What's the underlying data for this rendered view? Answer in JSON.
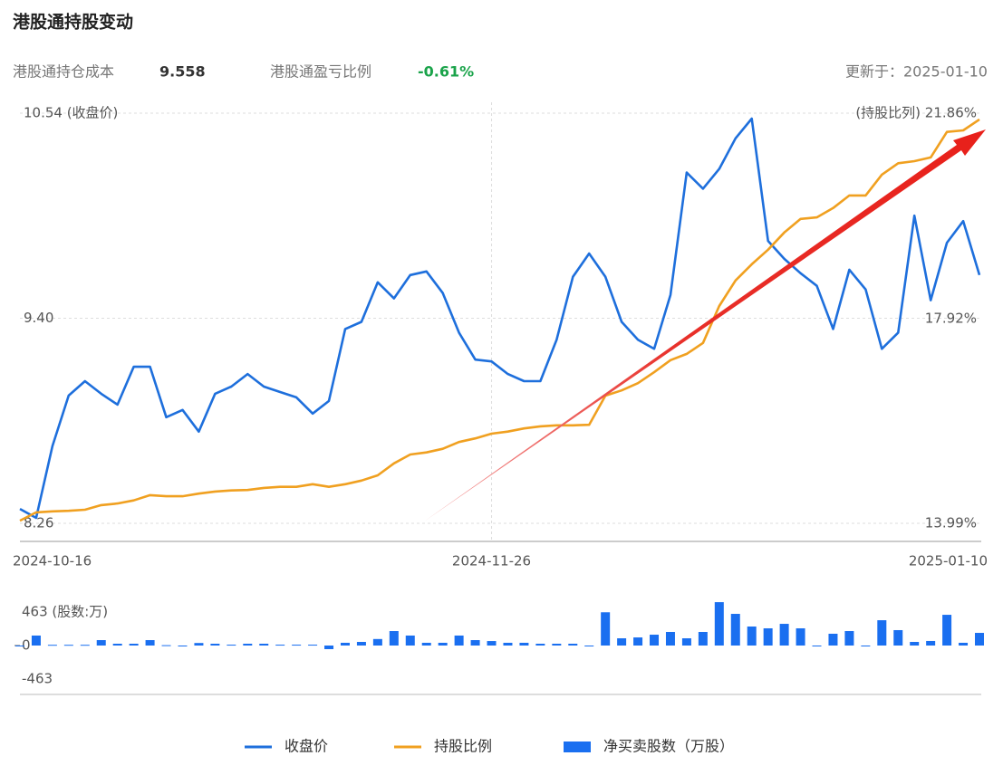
{
  "header": {
    "title": "港股通持股变动",
    "cost_label": "港股通持仓成本",
    "cost": "9.558",
    "pnl_label": "港股通盈亏比例",
    "pnl": "-0.61%",
    "updated": "更新于：2025-01-10"
  },
  "chart_data": [
    {
      "type": "line",
      "categories": [
        "2024-10-16",
        null,
        null,
        null,
        null,
        null,
        null,
        null,
        null,
        null,
        null,
        null,
        null,
        null,
        null,
        null,
        null,
        null,
        null,
        null,
        null,
        null,
        null,
        null,
        null,
        null,
        null,
        null,
        null,
        "2024-11-26",
        null,
        null,
        null,
        null,
        null,
        null,
        null,
        null,
        null,
        null,
        null,
        null,
        null,
        null,
        null,
        null,
        null,
        null,
        null,
        null,
        null,
        null,
        null,
        null,
        null,
        null,
        null,
        null,
        null,
        "2025-01-10"
      ],
      "series": [
        {
          "name": "收盘价",
          "color": "#1e6fdc",
          "values": [
            8.34,
            8.29,
            8.69,
            8.97,
            9.05,
            8.98,
            8.92,
            9.13,
            9.13,
            8.85,
            8.89,
            8.77,
            8.98,
            9.02,
            9.09,
            9.02,
            8.99,
            8.96,
            8.87,
            8.94,
            9.34,
            9.38,
            9.6,
            9.51,
            9.64,
            9.66,
            9.54,
            9.32,
            9.17,
            9.16,
            9.09,
            9.05,
            9.05,
            9.28,
            9.63,
            9.76,
            9.63,
            9.38,
            9.28,
            9.23,
            9.53,
            10.21,
            10.12,
            10.23,
            10.4,
            10.51,
            9.83,
            9.73,
            9.65,
            9.58,
            9.34,
            9.67,
            9.56,
            9.23,
            9.32,
            9.97,
            9.5,
            9.82,
            9.94,
            9.64
          ]
        },
        {
          "name": "持股比例",
          "color": "#f0a020",
          "axis": "y2",
          "values": [
            14.04,
            14.2,
            14.22,
            14.23,
            14.25,
            14.34,
            14.37,
            14.43,
            14.53,
            14.51,
            14.51,
            14.56,
            14.6,
            14.62,
            14.63,
            14.67,
            14.69,
            14.69,
            14.74,
            14.69,
            14.74,
            14.81,
            14.91,
            15.14,
            15.31,
            15.35,
            15.42,
            15.55,
            15.62,
            15.71,
            15.75,
            15.81,
            15.85,
            15.87,
            15.87,
            15.88,
            16.44,
            16.54,
            16.68,
            16.89,
            17.12,
            17.24,
            17.45,
            18.16,
            18.65,
            18.96,
            19.24,
            19.57,
            19.83,
            19.86,
            20.04,
            20.28,
            20.28,
            20.68,
            20.9,
            20.94,
            21.01,
            21.5,
            21.53,
            21.74
          ]
        }
      ],
      "ylim": [
        8.26,
        10.54
      ],
      "yticks": [
        8.26,
        {
          "value": 9.4,
          "label": "9.40"
        },
        {
          "value": 10.54,
          "label": "10.54 (收盘价)"
        }
      ],
      "y2lim": [
        13.99,
        21.86
      ],
      "y2ticks": [
        {
          "value": 13.99,
          "label": "13.99%"
        },
        {
          "value": 17.92,
          "label": "17.92%"
        },
        {
          "value": 21.86,
          "label": "(持股比列) 21.86%"
        }
      ],
      "grid": true
    },
    {
      "type": "bar",
      "series": [
        {
          "name": "净买卖股数（万股）",
          "color": "#1a6ff0",
          "values": [
            0,
            138,
            10,
            10,
            10,
            75,
            25,
            25,
            75,
            5,
            -5,
            35,
            25,
            12,
            25,
            25,
            12,
            12,
            12,
            -50,
            38,
            50,
            90,
            200,
            138,
            38,
            38,
            138,
            75,
            62,
            38,
            38,
            25,
            25,
            25,
            -12,
            460,
            100,
            112,
            150,
            188,
            100,
            188,
            600,
            438,
            263,
            238,
            300,
            238,
            0,
            163,
            200,
            0,
            350,
            213,
            50,
            63,
            425,
            38,
            175
          ]
        }
      ],
      "ylim": [
        -670,
        670
      ],
      "yticks": [
        -463,
        0,
        {
          "value": 463,
          "label": "463 (股数:万)"
        }
      ]
    }
  ]
}
